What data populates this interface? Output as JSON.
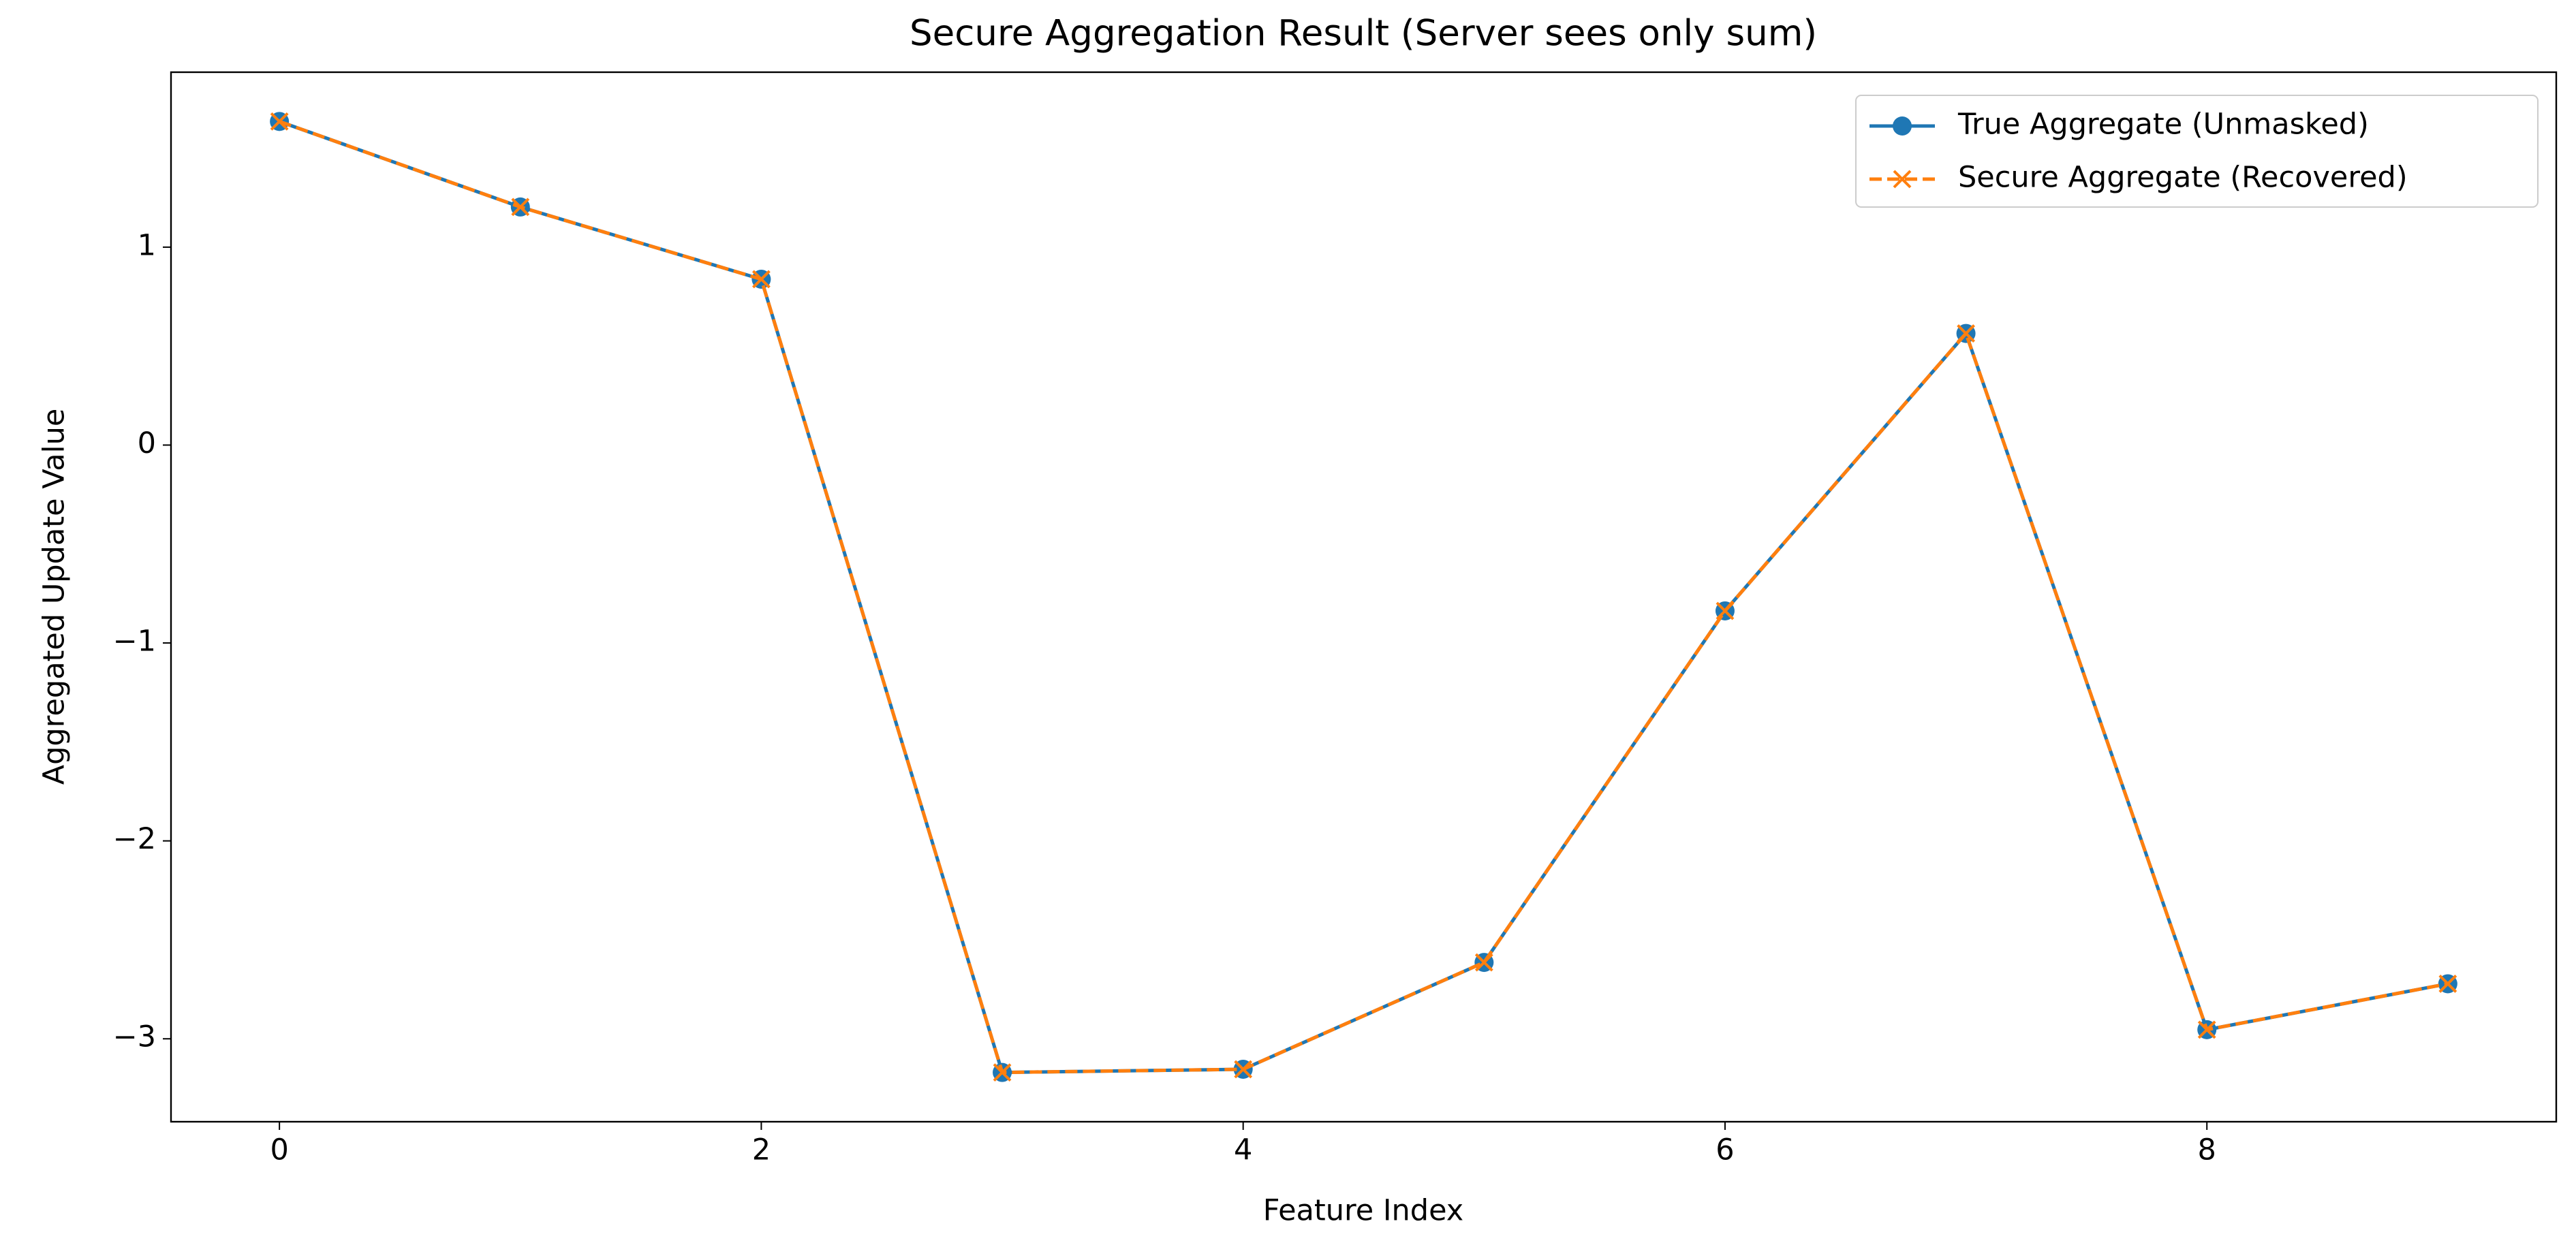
{
  "chart_data": {
    "type": "line",
    "title": "Secure Aggregation Result (Server sees only sum)",
    "x_label": "Feature Index",
    "y_label": "Aggregated Update Value",
    "x": [
      0,
      1,
      2,
      3,
      4,
      5,
      6,
      7,
      8,
      9
    ],
    "series": [
      {
        "name": "True Aggregate (Unmasked)",
        "color": "#1f77b4",
        "marker": "o",
        "linestyle": "solid",
        "values": [
          1.635,
          1.203,
          0.838,
          -3.17,
          -3.154,
          -2.614,
          -0.838,
          0.564,
          -2.954,
          -2.722
        ]
      },
      {
        "name": "Secure Aggregate (Recovered)",
        "color": "#ff7f0e",
        "marker": "x",
        "linestyle": "dashed",
        "values": [
          1.635,
          1.203,
          0.838,
          -3.17,
          -3.154,
          -2.614,
          -0.838,
          0.564,
          -2.954,
          -2.722
        ]
      }
    ],
    "xlim": [
      -0.45,
      9.45
    ],
    "ylim": [
      -3.419,
      1.884
    ],
    "xticks": [
      0,
      2,
      4,
      6,
      8
    ],
    "yticks": [
      {
        "value": -3,
        "label": "−3"
      },
      {
        "value": -2,
        "label": "−2"
      },
      {
        "value": -1,
        "label": "−1"
      },
      0,
      1
    ],
    "legend": "upper right"
  }
}
